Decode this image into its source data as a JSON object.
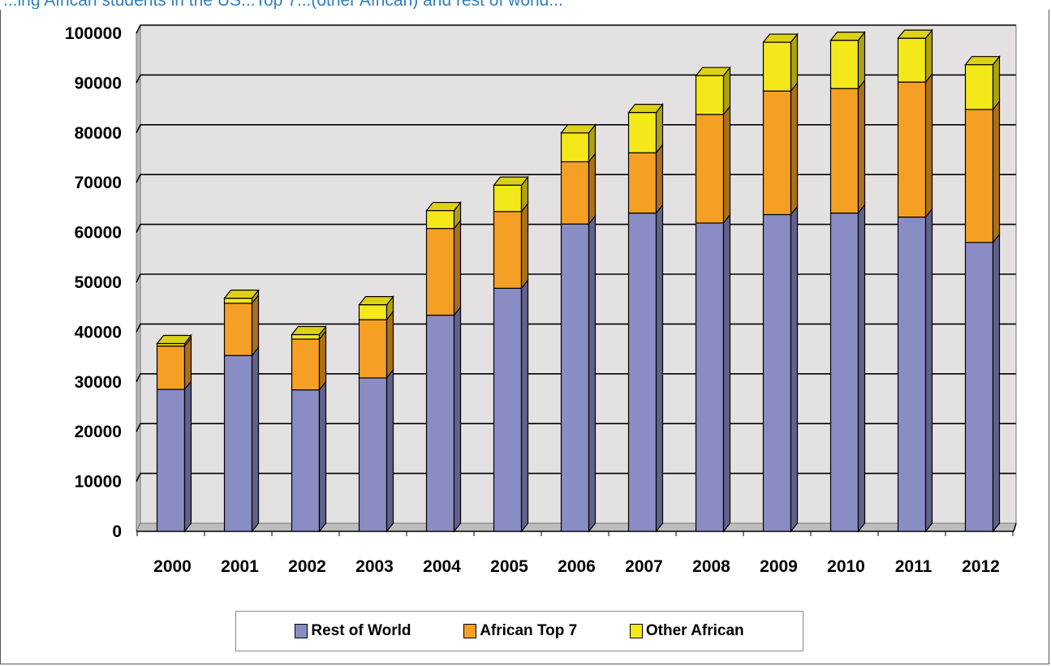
{
  "title_fragment": "...ing African students in the US...Top 7...(other African) and rest of world...",
  "colors": {
    "rest_of_world": "#8a8cc4",
    "african_top7": "#f5a024",
    "other_african": "#f5e81a",
    "plot_bg": "#e3e1e2",
    "floor": "#bdbdbd"
  },
  "legend": {
    "items": [
      {
        "label": "Rest of World",
        "color": "#8a8cc4"
      },
      {
        "label": "African Top 7",
        "color": "#f5a024"
      },
      {
        "label": "Other African",
        "color": "#f5e81a"
      }
    ]
  },
  "chart_data": {
    "type": "bar",
    "stacked": true,
    "three_d": true,
    "title": "",
    "xlabel": "",
    "ylabel": "",
    "ylim": [
      0,
      100000
    ],
    "yticks": [
      "0",
      "10000",
      "20000",
      "30000",
      "40000",
      "50000",
      "60000",
      "70000",
      "80000",
      "90000",
      "100000"
    ],
    "grid": true,
    "legend_position": "bottom",
    "categories": [
      "2000",
      "2001",
      "2002",
      "2003",
      "2004",
      "2005",
      "2006",
      "2007",
      "2008",
      "2009",
      "2010",
      "2011",
      "2012"
    ],
    "series": [
      {
        "name": "Rest of World",
        "values": [
          28500,
          35300,
          28400,
          30800,
          43400,
          48800,
          61700,
          63900,
          61900,
          63600,
          63900,
          63100,
          58000
        ]
      },
      {
        "name": "African Top 7",
        "values": [
          8700,
          10500,
          10200,
          11700,
          17400,
          15400,
          12500,
          12100,
          21800,
          24800,
          25000,
          27100,
          26700
        ]
      },
      {
        "name": "Other African",
        "values": [
          500,
          1000,
          900,
          3000,
          3600,
          5300,
          5800,
          8100,
          7800,
          9800,
          9700,
          8800,
          9000
        ]
      }
    ]
  }
}
